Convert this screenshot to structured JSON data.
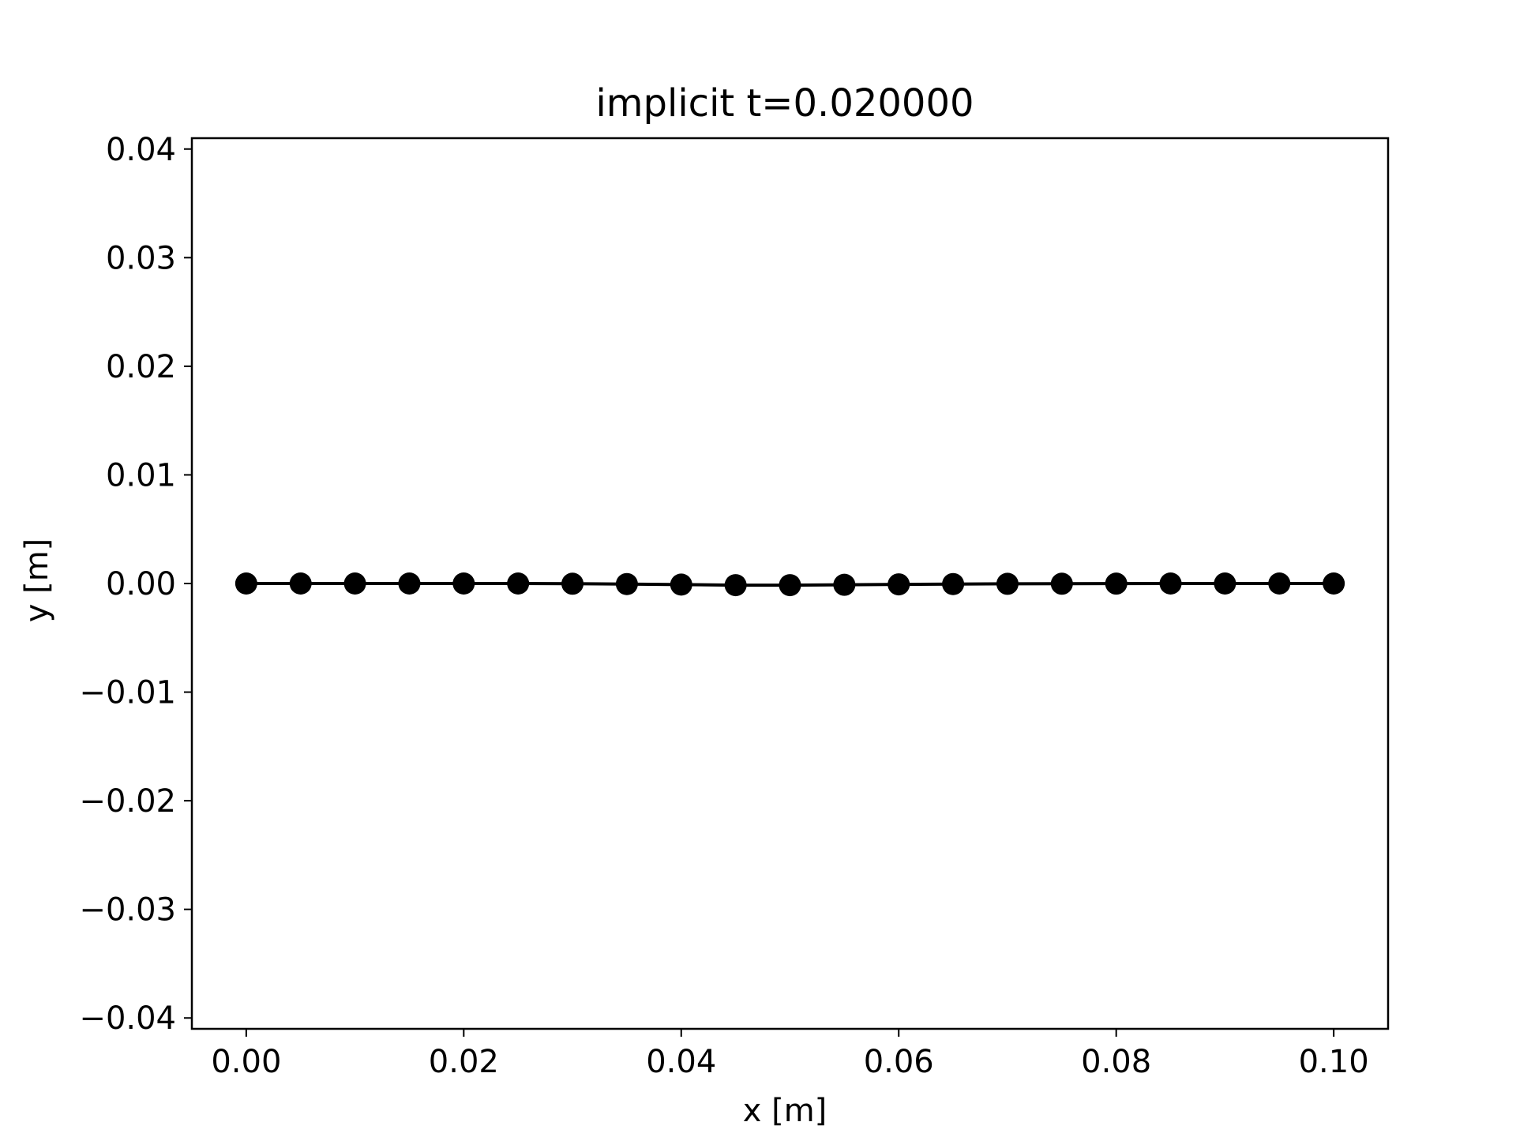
{
  "chart_data": {
    "type": "line",
    "title": "implicit t=0.020000",
    "xlabel": "x [m]",
    "ylabel": "y [m]",
    "xlim": [
      -0.005,
      0.105
    ],
    "ylim": [
      -0.041,
      0.041
    ],
    "xticks": [
      0.0,
      0.02,
      0.04,
      0.06,
      0.08,
      0.1
    ],
    "xtick_labels": [
      "0.00",
      "0.02",
      "0.04",
      "0.06",
      "0.08",
      "0.10"
    ],
    "yticks": [
      0.04,
      0.03,
      0.02,
      0.01,
      0.0,
      -0.01,
      -0.02,
      -0.03,
      -0.04
    ],
    "ytick_labels": [
      "0.04",
      "0.03",
      "0.02",
      "0.01",
      "0.00",
      "−0.01",
      "−0.02",
      "−0.03",
      "−0.04"
    ],
    "grid": false,
    "series": [
      {
        "color": "#000000",
        "marker": "circle",
        "x": [
          0.0,
          0.005,
          0.01,
          0.015,
          0.02,
          0.025,
          0.03,
          0.035,
          0.04,
          0.045,
          0.05,
          0.055,
          0.06,
          0.065,
          0.07,
          0.075,
          0.08,
          0.085,
          0.09,
          0.095,
          0.1
        ],
        "y": [
          0.0,
          0.0,
          0.0,
          0.0,
          0.0,
          0.0,
          -2e-05,
          -5e-05,
          -0.0001,
          -0.00015,
          -0.00015,
          -0.00012,
          -8e-05,
          -5e-05,
          -3e-05,
          -2e-05,
          -1e-05,
          0.0,
          0.0,
          0.0,
          0.0
        ]
      }
    ]
  }
}
